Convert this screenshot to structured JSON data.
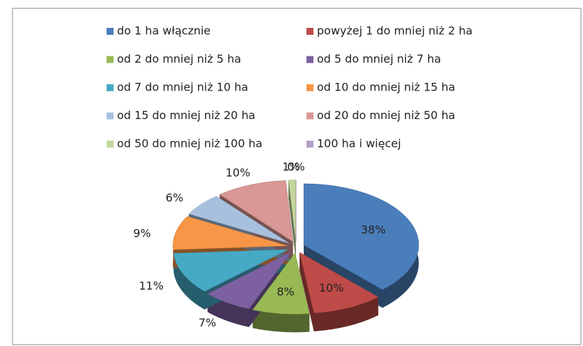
{
  "chart_data": {
    "type": "pie",
    "categories": [
      "do 1 ha włącznie",
      "powyżej 1 do mniej niż 2 ha",
      "od 2 do mniej niż 5 ha",
      "od 5 do mniej niż 7 ha",
      "od 7 do mniej niż 10 ha",
      "od 10 do mniej niż 15 ha",
      "od 15 do mniej niż 20 ha",
      "od 20 do mniej niż 50 ha",
      "od 50 do mniej niż 100 ha",
      "100 ha i więcej"
    ],
    "values": [
      38,
      10,
      8,
      7,
      11,
      9,
      6,
      10,
      1,
      0
    ],
    "value_labels": [
      "38%",
      "10%",
      "8%",
      "7%",
      "11%",
      "9%",
      "6%",
      "10%",
      "1%",
      "0%"
    ],
    "colors": [
      "#4a7ebb",
      "#be4b48",
      "#98b954",
      "#7d60a0",
      "#46aac5",
      "#f79646",
      "#a7c0de",
      "#d99795",
      "#c3d69b",
      "#b3a2c7"
    ],
    "legend": "top"
  }
}
